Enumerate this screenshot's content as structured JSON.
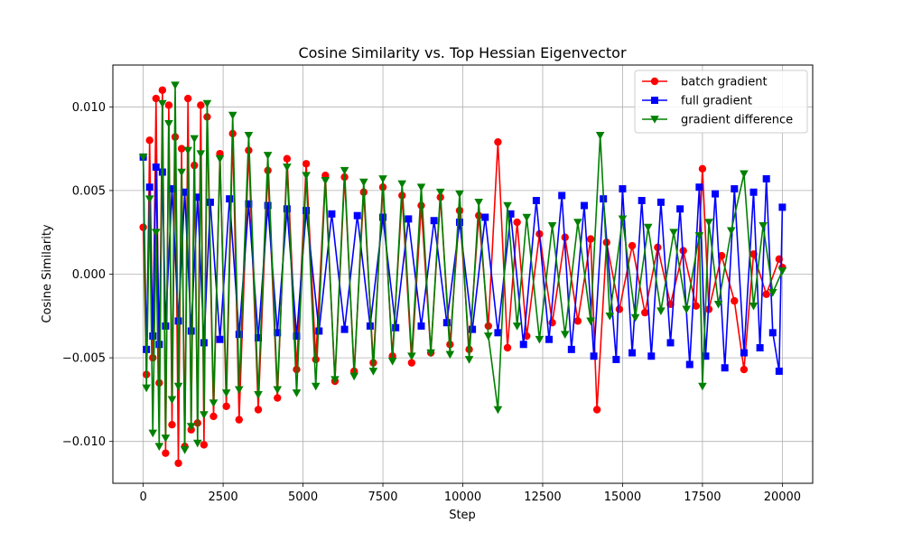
{
  "chart_data": {
    "type": "line",
    "title": "Cosine Similarity vs. Top Hessian Eigenvector",
    "xlabel": "Step",
    "ylabel": "Cosine Similarity",
    "xlim": [
      -950,
      20950
    ],
    "ylim": [
      -0.0125,
      0.0125
    ],
    "xticks": [
      0,
      2500,
      5000,
      7500,
      10000,
      12500,
      15000,
      17500,
      20000
    ],
    "xtick_labels": [
      "0",
      "2500",
      "5000",
      "7500",
      "10000",
      "12500",
      "15000",
      "17500",
      "20000"
    ],
    "yticks": [
      -0.01,
      -0.005,
      0.0,
      0.005,
      0.01
    ],
    "ytick_labels": [
      "−0.010",
      "−0.005",
      "0.000",
      "0.005",
      "0.010"
    ],
    "grid": true,
    "legend_position": "top-right",
    "series": [
      {
        "name": "batch gradient",
        "color": "#ff0000",
        "marker": "circle",
        "x": [
          0,
          100,
          200,
          300,
          400,
          500,
          600,
          700,
          800,
          900,
          1000,
          1100,
          1200,
          1300,
          1400,
          1500,
          1600,
          1700,
          1800,
          1900,
          2000,
          2200,
          2400,
          2600,
          2800,
          3000,
          3300,
          3600,
          3900,
          4200,
          4500,
          4800,
          5100,
          5400,
          5700,
          6000,
          6300,
          6600,
          6900,
          7200,
          7500,
          7800,
          8100,
          8400,
          8700,
          9000,
          9300,
          9600,
          9900,
          10200,
          10500,
          10800,
          11100,
          11400,
          11700,
          12000,
          12400,
          12800,
          13200,
          13600,
          14000,
          14200,
          14500,
          14900,
          15300,
          15700,
          16100,
          16500,
          16900,
          17300,
          17500,
          17700,
          18100,
          18500,
          18800,
          19100,
          19500,
          19900,
          20000
        ],
        "y": [
          0.0028,
          -0.006,
          0.008,
          -0.005,
          0.0105,
          -0.0065,
          0.011,
          -0.0107,
          0.0101,
          -0.009,
          0.0082,
          -0.0113,
          0.0075,
          -0.0103,
          0.0105,
          -0.0093,
          0.0065,
          -0.0089,
          0.0101,
          -0.0102,
          0.0094,
          -0.0085,
          0.0072,
          -0.0079,
          0.0084,
          -0.0087,
          0.0074,
          -0.0081,
          0.0062,
          -0.0074,
          0.0069,
          -0.0057,
          0.0066,
          -0.0051,
          0.0059,
          -0.0064,
          0.0058,
          -0.0058,
          0.0049,
          -0.0053,
          0.0052,
          -0.0049,
          0.0047,
          -0.0053,
          0.0041,
          -0.0047,
          0.0046,
          -0.0042,
          0.0038,
          -0.0045,
          0.0035,
          -0.0031,
          0.0079,
          -0.0044,
          0.0031,
          -0.0037,
          0.0024,
          -0.0029,
          0.0022,
          -0.0028,
          0.0021,
          -0.0081,
          0.0019,
          -0.0021,
          0.0017,
          -0.0023,
          0.0016,
          -0.0018,
          0.0014,
          -0.0019,
          0.0063,
          -0.0021,
          0.0011,
          -0.0016,
          -0.0057,
          0.0012,
          -0.0012,
          0.0009,
          0.0004
        ]
      },
      {
        "name": "full gradient",
        "color": "#0000ff",
        "marker": "square",
        "x": [
          0,
          100,
          200,
          300,
          400,
          500,
          600,
          700,
          900,
          1100,
          1300,
          1500,
          1700,
          1900,
          2100,
          2400,
          2700,
          3000,
          3300,
          3600,
          3900,
          4200,
          4500,
          4800,
          5100,
          5500,
          5900,
          6300,
          6700,
          7100,
          7500,
          7900,
          8300,
          8700,
          9100,
          9500,
          9900,
          10300,
          10700,
          11100,
          11500,
          11900,
          12300,
          12700,
          13100,
          13400,
          13800,
          14100,
          14400,
          14800,
          15000,
          15300,
          15600,
          15900,
          16200,
          16500,
          16800,
          17100,
          17400,
          17600,
          17900,
          18200,
          18500,
          18800,
          19100,
          19300,
          19500,
          19700,
          19900,
          20000
        ],
        "y": [
          0.007,
          -0.0045,
          0.0052,
          -0.0037,
          0.0064,
          -0.0042,
          0.0061,
          -0.0031,
          0.0051,
          -0.0028,
          0.0049,
          -0.0034,
          0.0046,
          -0.0041,
          0.0043,
          -0.0039,
          0.0045,
          -0.0036,
          0.0042,
          -0.0038,
          0.0041,
          -0.0035,
          0.0039,
          -0.0037,
          0.0038,
          -0.0034,
          0.0036,
          -0.0033,
          0.0035,
          -0.0031,
          0.0034,
          -0.0032,
          0.0033,
          -0.0031,
          0.0032,
          -0.0029,
          0.0031,
          -0.0033,
          0.0034,
          -0.0035,
          0.0036,
          -0.0042,
          0.0044,
          -0.0039,
          0.0047,
          -0.0045,
          0.0041,
          -0.0049,
          0.0045,
          -0.0051,
          0.0051,
          -0.0047,
          0.0044,
          -0.0049,
          0.0043,
          -0.0041,
          0.0039,
          -0.0054,
          0.0052,
          -0.0049,
          0.0048,
          -0.0056,
          0.0051,
          -0.0047,
          0.0049,
          -0.0044,
          0.0057,
          -0.0035,
          -0.0058,
          0.004
        ]
      },
      {
        "name": "gradient difference",
        "color": "#008000",
        "marker": "triangle-down",
        "x": [
          0,
          100,
          200,
          300,
          400,
          500,
          600,
          700,
          800,
          900,
          1000,
          1100,
          1200,
          1300,
          1400,
          1500,
          1600,
          1700,
          1800,
          1900,
          2000,
          2200,
          2400,
          2600,
          2800,
          3000,
          3300,
          3600,
          3900,
          4200,
          4500,
          4800,
          5100,
          5400,
          5700,
          6000,
          6300,
          6600,
          6900,
          7200,
          7500,
          7800,
          8100,
          8400,
          8700,
          9000,
          9300,
          9600,
          9900,
          10200,
          10500,
          10800,
          11100,
          11400,
          11700,
          12000,
          12400,
          12800,
          13200,
          13600,
          14000,
          14300,
          14600,
          15000,
          15400,
          15800,
          16200,
          16600,
          17000,
          17400,
          17500,
          17700,
          18000,
          18400,
          18800,
          19100,
          19400,
          19700,
          20000
        ],
        "y": [
          0.007,
          -0.0068,
          0.0045,
          -0.0095,
          0.0025,
          -0.0103,
          0.0102,
          -0.0098,
          0.009,
          -0.0075,
          0.0113,
          -0.0067,
          0.0061,
          -0.0105,
          0.0074,
          -0.0091,
          0.0081,
          -0.0101,
          0.0072,
          -0.0084,
          0.0102,
          -0.0077,
          0.0069,
          -0.0071,
          0.0095,
          -0.0069,
          0.0083,
          -0.0072,
          0.0071,
          -0.0069,
          0.0064,
          -0.0071,
          0.0059,
          -0.0067,
          0.0056,
          -0.0063,
          0.0062,
          -0.0061,
          0.0055,
          -0.0058,
          0.0057,
          -0.0052,
          0.0054,
          -0.0049,
          0.0052,
          -0.0047,
          0.0049,
          -0.0048,
          0.0048,
          -0.0051,
          0.0043,
          -0.0037,
          -0.0081,
          0.0041,
          -0.0031,
          0.0034,
          -0.0039,
          0.0029,
          -0.0036,
          0.0031,
          -0.0028,
          0.0083,
          -0.0025,
          0.0033,
          -0.0026,
          0.0028,
          -0.0022,
          0.0025,
          -0.0021,
          0.0023,
          -0.0067,
          0.0031,
          -0.0018,
          0.0026,
          0.006,
          -0.0019,
          0.0029,
          -0.0011,
          0.0002
        ]
      }
    ]
  }
}
